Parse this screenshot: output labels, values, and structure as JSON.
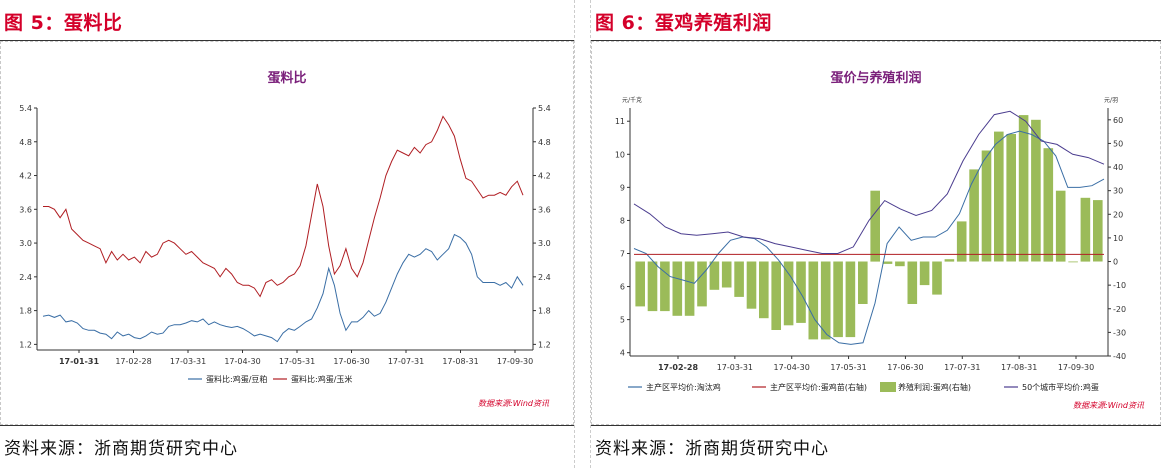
{
  "left": {
    "heading": "图 5：蛋料比",
    "source": "资料来源：浙商期货研究中心"
  },
  "right": {
    "heading": "图 6：蛋鸡养殖利润",
    "source": "资料来源：浙商期货研究中心"
  },
  "chart_data": [
    {
      "type": "line",
      "title": "蛋料比",
      "watermark": "数据来源:Wind资讯",
      "x_ticks": [
        "17-01-31",
        "17-02-28",
        "17-03-31",
        "17-04-30",
        "17-05-31",
        "17-06-30",
        "17-07-31",
        "17-08-31",
        "17-09-30"
      ],
      "y_ticks": [
        "1.2",
        "1.8",
        "2.4",
        "3.0",
        "3.6",
        "4.2",
        "4.8",
        "5.4"
      ],
      "ylim": [
        1.1,
        5.4
      ],
      "grid": false,
      "legend_position": "bottom",
      "series": [
        {
          "name": "蛋料比:鸡蛋/豆粕",
          "color": "#3a6ea5",
          "values": [
            1.7,
            1.72,
            1.68,
            1.72,
            1.6,
            1.62,
            1.58,
            1.48,
            1.45,
            1.45,
            1.4,
            1.38,
            1.3,
            1.42,
            1.35,
            1.38,
            1.32,
            1.3,
            1.35,
            1.42,
            1.38,
            1.4,
            1.52,
            1.55,
            1.55,
            1.58,
            1.62,
            1.6,
            1.65,
            1.55,
            1.6,
            1.55,
            1.52,
            1.5,
            1.52,
            1.48,
            1.42,
            1.35,
            1.38,
            1.35,
            1.32,
            1.25,
            1.4,
            1.48,
            1.45,
            1.52,
            1.6,
            1.65,
            1.85,
            2.1,
            2.55,
            2.25,
            1.75,
            1.45,
            1.6,
            1.6,
            1.68,
            1.8,
            1.7,
            1.75,
            1.95,
            2.2,
            2.45,
            2.65,
            2.8,
            2.75,
            2.8,
            2.9,
            2.85,
            2.7,
            2.8,
            2.9,
            3.15,
            3.1,
            3.0,
            2.8,
            2.4,
            2.3,
            2.3,
            2.3,
            2.25,
            2.3,
            2.2,
            2.4,
            2.25
          ]
        },
        {
          "name": "蛋料比:鸡蛋/玉米",
          "color": "#b01e23",
          "values": [
            3.65,
            3.65,
            3.6,
            3.45,
            3.6,
            3.25,
            3.15,
            3.05,
            3.0,
            2.95,
            2.9,
            2.65,
            2.85,
            2.7,
            2.8,
            2.7,
            2.75,
            2.65,
            2.85,
            2.75,
            2.8,
            3.0,
            3.05,
            3.0,
            2.9,
            2.8,
            2.85,
            2.75,
            2.65,
            2.6,
            2.55,
            2.4,
            2.55,
            2.45,
            2.3,
            2.25,
            2.25,
            2.2,
            2.05,
            2.3,
            2.35,
            2.25,
            2.3,
            2.4,
            2.45,
            2.6,
            2.95,
            3.5,
            4.05,
            3.65,
            2.95,
            2.45,
            2.6,
            2.9,
            2.55,
            2.4,
            2.65,
            3.05,
            3.45,
            3.8,
            4.2,
            4.45,
            4.65,
            4.6,
            4.55,
            4.7,
            4.6,
            4.75,
            4.8,
            5.0,
            5.25,
            5.1,
            4.9,
            4.5,
            4.15,
            4.1,
            3.95,
            3.8,
            3.85,
            3.85,
            3.9,
            3.85,
            4.0,
            4.1,
            3.85
          ]
        }
      ]
    },
    {
      "type": "bar+line",
      "title": "蛋价与养殖利润",
      "watermark": "数据来源:Wind资讯",
      "left_unit": "元/千克",
      "right_unit": "元/羽",
      "x_ticks": [
        "17-02-28",
        "17-03-31",
        "17-04-30",
        "17-05-31",
        "17-06-30",
        "17-07-31",
        "17-08-31",
        "17-09-30"
      ],
      "y_left_ticks": [
        "4",
        "5",
        "6",
        "7",
        "8",
        "9",
        "10",
        "11"
      ],
      "y_right_ticks": [
        "-40",
        "-30",
        "-20",
        "-10",
        "0",
        "10",
        "20",
        "30",
        "40",
        "50",
        "60"
      ],
      "ylim_left": [
        3.9,
        11.4
      ],
      "ylim_right": [
        -40,
        65
      ],
      "grid": false,
      "legend_position": "bottom",
      "series": [
        {
          "name": "主产区平均价:淘汰鸡",
          "type": "line",
          "axis": "left",
          "color": "#3a6ea5",
          "values": [
            7.15,
            7.0,
            6.6,
            6.3,
            6.2,
            6.1,
            6.5,
            7.0,
            7.4,
            7.5,
            7.45,
            7.2,
            6.8,
            6.3,
            5.7,
            5.0,
            4.55,
            4.3,
            4.25,
            4.3,
            5.5,
            7.3,
            7.8,
            7.4,
            7.5,
            7.5,
            7.7,
            8.2,
            9.1,
            9.8,
            10.3,
            10.6,
            10.7,
            10.6,
            10.4,
            9.95,
            9.0,
            9.0,
            9.05,
            9.25
          ]
        },
        {
          "name": "主产区平均价:蛋鸡苗(右轴)",
          "type": "line",
          "axis": "right",
          "color": "#b01e23",
          "values": [
            3,
            3,
            3,
            3,
            3,
            3,
            3,
            3,
            3,
            3,
            3,
            3,
            3,
            3,
            3,
            3,
            3,
            3,
            3,
            3,
            3,
            3,
            3,
            3,
            3,
            3,
            3,
            3,
            3,
            3,
            3,
            3,
            3,
            3,
            3,
            3,
            3,
            3,
            3,
            3
          ]
        },
        {
          "name": "养殖利润:蛋鸡(右轴)",
          "type": "bar",
          "axis": "right",
          "color": "#9bbb59",
          "values": [
            -19,
            -21,
            -21,
            -23,
            -23,
            -19,
            -12,
            -11,
            -15,
            -20,
            -24,
            -29,
            -27,
            -26,
            -33,
            -33,
            -32,
            -32,
            -18,
            30,
            -1,
            -2,
            -18,
            -10,
            -14,
            1,
            17,
            39,
            47,
            55,
            54,
            62,
            60,
            48,
            30,
            0,
            27,
            26
          ]
        },
        {
          "name": "50个城市平均价:鸡蛋",
          "type": "line",
          "axis": "left",
          "color": "#4b3d8f",
          "values": [
            8.5,
            8.2,
            7.8,
            7.6,
            7.55,
            7.6,
            7.65,
            7.5,
            7.45,
            7.3,
            7.2,
            7.1,
            7.0,
            7.0,
            7.2,
            8.0,
            8.6,
            8.35,
            8.15,
            8.3,
            8.8,
            9.8,
            10.6,
            11.2,
            11.3,
            11.0,
            10.4,
            10.3,
            10.0,
            9.9,
            9.7
          ]
        }
      ]
    }
  ]
}
